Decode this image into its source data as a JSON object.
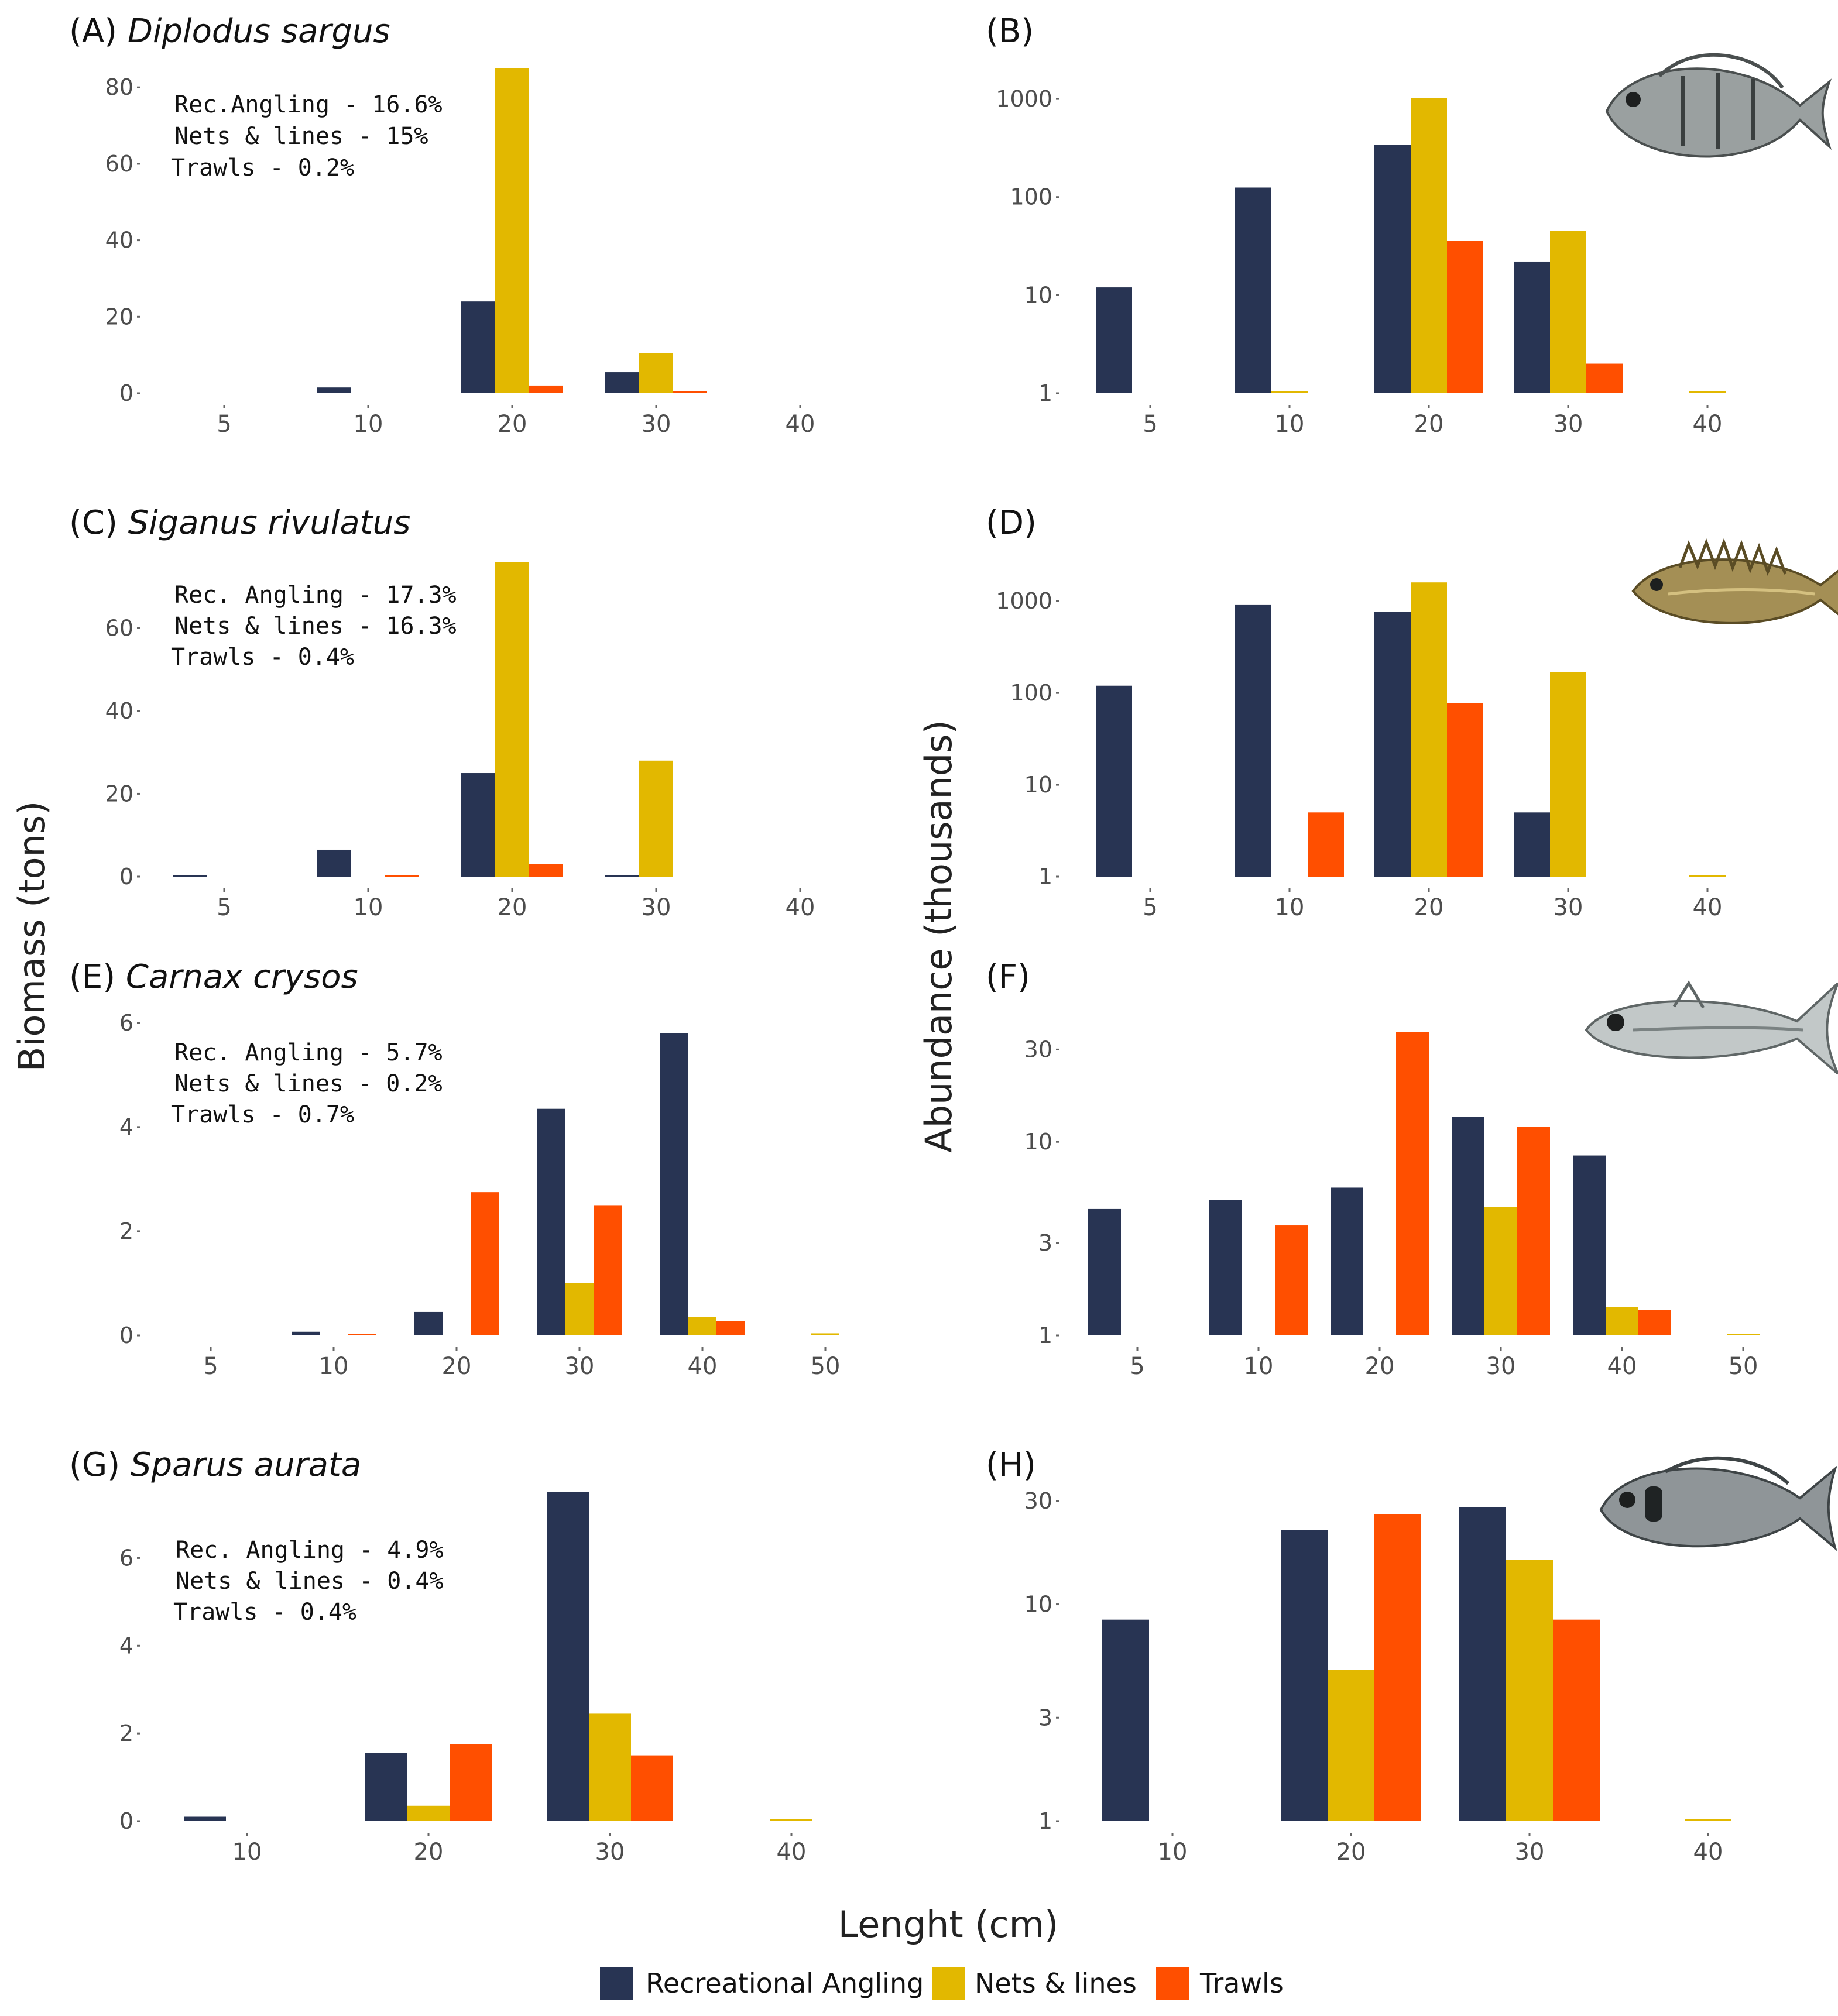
{
  "colors": {
    "recreational_angling": "#283453",
    "nets_lines": "#E2B800",
    "trawls": "#FF4F00",
    "tick": "#666666"
  },
  "axis_titles": {
    "y_left": "Biomass (tons)",
    "y_right": "Abundance (thousands)",
    "x": "Lenght (cm)"
  },
  "legend": {
    "items": [
      {
        "label": "Recreational Angling",
        "color_key": "recreational_angling"
      },
      {
        "label": "Nets & lines",
        "color_key": "nets_lines"
      },
      {
        "label": "Trawls",
        "color_key": "trawls"
      }
    ]
  },
  "panels": {
    "A": {
      "label": "(A)",
      "species": "Diplodus sargus",
      "notes": [
        "Rec.Angling - 16.6%",
        "Nets & lines - 15%",
        "Trawls - 0.2%"
      ]
    },
    "B": {
      "label": "(B)",
      "fish_icon": "white-seabream-illustration"
    },
    "C": {
      "label": "(C)",
      "species": "Siganus rivulatus",
      "notes": [
        "Rec. Angling - 17.3%",
        "Nets & lines - 16.3%",
        "Trawls - 0.4%"
      ]
    },
    "D": {
      "label": "(D)",
      "fish_icon": "rabbitfish-illustration"
    },
    "E": {
      "label": "(E)",
      "species": "Carnax crysos",
      "notes": [
        "Rec. Angling - 5.7%",
        "Nets & lines - 0.2%",
        "Trawls - 0.7%"
      ]
    },
    "F": {
      "label": "(F)",
      "fish_icon": "blue-runner-illustration"
    },
    "G": {
      "label": "(G)",
      "species": "Sparus aurata",
      "notes": [
        "Rec. Angling - 4.9%",
        "Nets & lines - 0.4%",
        "Trawls - 0.4%"
      ]
    },
    "H": {
      "label": "(H)",
      "fish_icon": "gilthead-seabream-illustration"
    }
  },
  "chart_data": [
    {
      "id": "A",
      "type": "bar",
      "title": "Diplodus sargus",
      "ylabel": "Biomass (tons)",
      "xlabel": "Lenght (cm)",
      "scale": "linear",
      "ylim": [
        0,
        86
      ],
      "yticks": [
        0,
        20,
        40,
        60,
        80
      ],
      "categories": [
        "5",
        "10",
        "20",
        "30",
        "40"
      ],
      "series": [
        {
          "name": "Recreational Angling",
          "values": [
            0,
            1.5,
            24,
            5.5,
            0
          ]
        },
        {
          "name": "Nets & lines",
          "values": [
            0,
            0,
            85,
            10.5,
            0
          ]
        },
        {
          "name": "Trawls",
          "values": [
            0,
            0,
            2,
            0.2,
            0
          ]
        }
      ]
    },
    {
      "id": "B",
      "type": "bar",
      "ylabel": "Abundance (thousands)",
      "xlabel": "Lenght (cm)",
      "scale": "log",
      "ylim": [
        1,
        1300
      ],
      "yticks": [
        1,
        10,
        100,
        1000
      ],
      "categories": [
        "5",
        "10",
        "20",
        "30",
        "40"
      ],
      "series": [
        {
          "name": "Recreational Angling",
          "values": [
            12,
            125,
            340,
            22,
            0
          ]
        },
        {
          "name": "Nets & lines",
          "values": [
            0,
            1,
            1020,
            45,
            1
          ]
        },
        {
          "name": "Trawls",
          "values": [
            0,
            0,
            36,
            2,
            0
          ]
        }
      ]
    },
    {
      "id": "C",
      "type": "bar",
      "title": "Siganus rivulatus",
      "ylabel": "Biomass (tons)",
      "xlabel": "Lenght (cm)",
      "scale": "linear",
      "ylim": [
        0,
        76
      ],
      "yticks": [
        0,
        20,
        40,
        60
      ],
      "categories": [
        "5",
        "10",
        "20",
        "30",
        "40"
      ],
      "series": [
        {
          "name": "Recreational Angling",
          "values": [
            0.2,
            6.5,
            25,
            0.4,
            0
          ]
        },
        {
          "name": "Nets & lines",
          "values": [
            0,
            0,
            76,
            28,
            0
          ]
        },
        {
          "name": "Trawls",
          "values": [
            0,
            0.2,
            3,
            0,
            0
          ]
        }
      ]
    },
    {
      "id": "D",
      "type": "bar",
      "ylabel": "Abundance (thousands)",
      "xlabel": "Lenght (cm)",
      "scale": "log",
      "ylim": [
        1,
        2000
      ],
      "yticks": [
        1,
        10,
        100,
        1000
      ],
      "categories": [
        "5",
        "10",
        "20",
        "30",
        "40"
      ],
      "series": [
        {
          "name": "Recreational Angling",
          "values": [
            120,
            920,
            760,
            5,
            0
          ]
        },
        {
          "name": "Nets & lines",
          "values": [
            0,
            0,
            1600,
            170,
            1
          ]
        },
        {
          "name": "Trawls",
          "values": [
            0,
            5,
            78,
            0,
            0
          ]
        }
      ]
    },
    {
      "id": "E",
      "type": "bar",
      "title": "Carnax crysos",
      "ylabel": "Biomass (tons)",
      "xlabel": "Lenght (cm)",
      "scale": "linear",
      "ylim": [
        0,
        6.2
      ],
      "yticks": [
        0,
        2,
        4,
        6
      ],
      "categories": [
        "5",
        "10",
        "20",
        "30",
        "40",
        "50"
      ],
      "series": [
        {
          "name": "Recreational Angling",
          "values": [
            0,
            0.07,
            0.45,
            4.35,
            5.8,
            0
          ]
        },
        {
          "name": "Nets & lines",
          "values": [
            0,
            0,
            0,
            1.0,
            0.35,
            0.04
          ]
        },
        {
          "name": "Trawls",
          "values": [
            0,
            0.03,
            2.75,
            2.5,
            0.28,
            0
          ]
        }
      ]
    },
    {
      "id": "F",
      "type": "bar",
      "ylabel": "Abundance (thousands)",
      "xlabel": "Lenght (cm)",
      "scale": "log",
      "ylim": [
        1,
        50
      ],
      "yticks": [
        1,
        3,
        10,
        30
      ],
      "categories": [
        "5",
        "10",
        "20",
        "30",
        "40",
        "50"
      ],
      "series": [
        {
          "name": "Recreational Angling",
          "values": [
            4.5,
            5,
            5.8,
            13.5,
            8.5,
            0
          ]
        },
        {
          "name": "Nets & lines",
          "values": [
            0,
            0,
            0,
            4.6,
            1.4,
            1
          ]
        },
        {
          "name": "Trawls",
          "values": [
            0,
            3.7,
            37,
            12,
            1.35,
            0
          ]
        }
      ]
    },
    {
      "id": "G",
      "type": "bar",
      "title": "Sparus aurata",
      "ylabel": "Biomass (tons)",
      "xlabel": "Lenght (cm)",
      "scale": "linear",
      "ylim": [
        0,
        7.5
      ],
      "yticks": [
        0,
        2,
        4,
        6
      ],
      "categories": [
        "10",
        "20",
        "30",
        "40"
      ],
      "series": [
        {
          "name": "Recreational Angling",
          "values": [
            0.1,
            1.55,
            7.5,
            0
          ]
        },
        {
          "name": "Nets & lines",
          "values": [
            0,
            0.35,
            2.45,
            0.03
          ]
        },
        {
          "name": "Trawls",
          "values": [
            0,
            1.75,
            1.5,
            0
          ]
        }
      ]
    },
    {
      "id": "H",
      "type": "bar",
      "ylabel": "Abundance (thousands)",
      "xlabel": "Lenght (cm)",
      "scale": "log",
      "ylim": [
        1,
        35
      ],
      "yticks": [
        1,
        3,
        10,
        30
      ],
      "categories": [
        "10",
        "20",
        "30",
        "40"
      ],
      "series": [
        {
          "name": "Recreational Angling",
          "values": [
            8.5,
            22,
            28,
            0
          ]
        },
        {
          "name": "Nets & lines",
          "values": [
            0,
            5,
            16,
            1
          ]
        },
        {
          "name": "Trawls",
          "values": [
            0,
            26,
            8.5,
            0
          ]
        }
      ]
    }
  ]
}
